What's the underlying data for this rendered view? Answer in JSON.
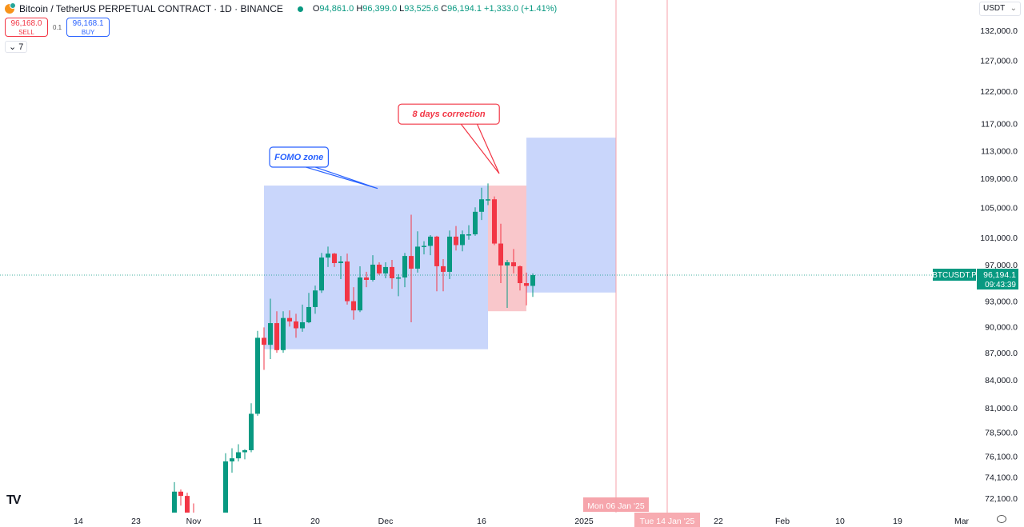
{
  "header": {
    "symbol": "Bitcoin / TetherUS PERPETUAL CONTRACT · 1D · BINANCE",
    "open_label": "O",
    "open": "94,861.0",
    "high_label": "H",
    "high": "96,399.0",
    "low_label": "L",
    "low": "93,525.6",
    "close_label": "C",
    "close": "96,194.1",
    "change": "+1,333.0 (+1.41%)"
  },
  "trade": {
    "sell_price": "96,168.0",
    "sell_label": "SELL",
    "spread": "0.1",
    "buy_price": "96,168.1",
    "buy_label": "BUY"
  },
  "indicators_toggle": "7",
  "currency": "USDT",
  "current": {
    "ticker": "BTCUSDT.P",
    "price": "96,194.1",
    "countdown": "09:43:39"
  },
  "colors": {
    "up": "#089981",
    "down": "#f23645",
    "zone_blue": "#c6d4fb",
    "zone_pink": "#f9c4c8",
    "callout_blue": "#2962ff",
    "callout_red": "#f23645"
  },
  "chart_data": {
    "type": "candlestick",
    "y_scale": "log",
    "ylim": [
      71000,
      136000
    ],
    "y_ticks": [
      132000,
      127000,
      122000,
      117000,
      113000,
      109000,
      105000,
      101000,
      97000,
      93000,
      90000,
      87000,
      84000,
      81000,
      78500,
      76100,
      74100,
      72100
    ],
    "y_tick_labels": [
      "132,000.0",
      "127,000.0",
      "122,000.0",
      "117,000.0",
      "113,000.0",
      "109,000.0",
      "105,000.0",
      "101,000.0",
      "97,000.0",
      "93,000.0",
      "90,000.0",
      "87,000.0",
      "84,000.0",
      "81,000.0",
      "78,500.0",
      "76,100.0",
      "74,100.0",
      "72,100.0"
    ],
    "x_ticks": [
      {
        "date": "2024-10-14",
        "label": "14"
      },
      {
        "date": "2024-10-23",
        "label": "23"
      },
      {
        "date": "2024-11-01",
        "label": "Nov"
      },
      {
        "date": "2024-11-11",
        "label": "11"
      },
      {
        "date": "2024-11-20",
        "label": "20"
      },
      {
        "date": "2024-12-01",
        "label": "Dec"
      },
      {
        "date": "2024-12-16",
        "label": "16"
      },
      {
        "date": "2025-01-01",
        "label": "2025"
      },
      {
        "date": "2025-01-22",
        "label": "22"
      },
      {
        "date": "2025-02-01",
        "label": "Feb"
      },
      {
        "date": "2025-02-10",
        "label": "10"
      },
      {
        "date": "2025-02-19",
        "label": "19"
      },
      {
        "date": "2025-03-01",
        "label": "Mar"
      }
    ],
    "candles": [
      [
        "2024-10-29",
        69900,
        73600,
        69700,
        72700
      ],
      [
        "2024-10-30",
        72700,
        72900,
        71400,
        72300
      ],
      [
        "2024-10-31",
        72300,
        72600,
        69700,
        70200
      ],
      [
        "2024-11-01",
        70200,
        71600,
        68800,
        69500
      ],
      [
        "2024-11-02",
        69500,
        69900,
        68800,
        69300
      ],
      [
        "2024-11-03",
        69300,
        69400,
        67400,
        68700
      ],
      [
        "2024-11-04",
        68700,
        68900,
        66800,
        67800
      ],
      [
        "2024-11-05",
        67800,
        70500,
        67500,
        69300
      ],
      [
        "2024-11-06",
        69300,
        76400,
        69000,
        75600
      ],
      [
        "2024-11-07",
        75600,
        76900,
        74500,
        75900
      ],
      [
        "2024-11-08",
        75900,
        77300,
        75600,
        76500
      ],
      [
        "2024-11-09",
        76500,
        76800,
        75800,
        76700
      ],
      [
        "2024-11-10",
        76700,
        81500,
        76500,
        80400
      ],
      [
        "2024-11-11",
        80400,
        89500,
        80200,
        88700
      ],
      [
        "2024-11-12",
        88700,
        89900,
        85100,
        87900
      ],
      [
        "2024-11-13",
        87900,
        93300,
        86300,
        90400
      ],
      [
        "2024-11-14",
        90400,
        91800,
        87000,
        87300
      ],
      [
        "2024-11-15",
        87300,
        91800,
        87000,
        91000
      ],
      [
        "2024-11-16",
        91000,
        91900,
        90000,
        90600
      ],
      [
        "2024-11-17",
        90600,
        91500,
        88700,
        89800
      ],
      [
        "2024-11-18",
        89800,
        92600,
        89400,
        90500
      ],
      [
        "2024-11-19",
        90500,
        94000,
        90400,
        92300
      ],
      [
        "2024-11-20",
        92300,
        94900,
        91500,
        94300
      ],
      [
        "2024-11-21",
        94300,
        99000,
        94000,
        98400
      ],
      [
        "2024-11-22",
        98400,
        99800,
        97200,
        98900
      ],
      [
        "2024-11-23",
        98900,
        99000,
        97200,
        97700
      ],
      [
        "2024-11-24",
        97700,
        98600,
        95700,
        97900
      ],
      [
        "2024-11-25",
        97900,
        98900,
        92600,
        93000
      ],
      [
        "2024-11-26",
        93000,
        94700,
        90800,
        91900
      ],
      [
        "2024-11-27",
        91900,
        97300,
        91700,
        95900
      ],
      [
        "2024-11-28",
        95900,
        96600,
        94700,
        95600
      ],
      [
        "2024-11-29",
        95600,
        98700,
        95400,
        97500
      ],
      [
        "2024-11-30",
        97500,
        97800,
        96200,
        96400
      ],
      [
        "2024-12-01",
        96400,
        97800,
        95800,
        97200
      ],
      [
        "2024-12-02",
        97200,
        98100,
        94500,
        95800
      ],
      [
        "2024-12-03",
        95800,
        96300,
        93600,
        95900
      ],
      [
        "2024-12-04",
        95900,
        99000,
        94700,
        98600
      ],
      [
        "2024-12-05",
        98600,
        104000,
        90500,
        97000
      ],
      [
        "2024-12-06",
        97000,
        101800,
        96500,
        99800
      ],
      [
        "2024-12-07",
        99800,
        100500,
        98800,
        99900
      ],
      [
        "2024-12-08",
        99900,
        101300,
        98700,
        101100
      ],
      [
        "2024-12-09",
        101100,
        101200,
        94200,
        97300
      ],
      [
        "2024-12-10",
        97300,
        98200,
        94200,
        96600
      ],
      [
        "2024-12-11",
        96600,
        101900,
        95700,
        101100
      ],
      [
        "2024-12-12",
        101100,
        102500,
        99300,
        100000
      ],
      [
        "2024-12-13",
        100000,
        101900,
        99200,
        101400
      ],
      [
        "2024-12-14",
        101400,
        102600,
        100700,
        101400
      ],
      [
        "2024-12-15",
        101400,
        105000,
        101200,
        104400
      ],
      [
        "2024-12-16",
        104400,
        107700,
        103300,
        106100
      ],
      [
        "2024-12-17",
        106100,
        108300,
        105300,
        106100
      ],
      [
        "2024-12-18",
        106100,
        106500,
        100000,
        100200
      ],
      [
        "2024-12-19",
        100200,
        102800,
        95200,
        97400
      ],
      [
        "2024-12-20",
        97400,
        98100,
        92200,
        97800
      ],
      [
        "2024-12-21",
        97800,
        99500,
        96400,
        97300
      ],
      [
        "2024-12-22",
        97300,
        97400,
        94300,
        95200
      ],
      [
        "2024-12-23",
        95200,
        96500,
        92500,
        94861
      ],
      [
        "2024-12-24",
        94861,
        96399,
        93525.6,
        96194.1
      ]
    ],
    "rectangles": [
      {
        "name": "fomo-zone",
        "from": "2024-11-12",
        "to": "2024-12-17",
        "top": 108000,
        "bottom": 87400,
        "color": "#c6d4fb"
      },
      {
        "name": "correction-zone",
        "from": "2024-12-17",
        "to": "2024-12-23",
        "top": 108000,
        "bottom": 91800,
        "color": "#f9c4c8"
      },
      {
        "name": "projection-zone",
        "from": "2024-12-23",
        "to": "2025-01-06",
        "top": 114900,
        "bottom": 94050,
        "color": "#c6d4fb"
      }
    ],
    "callouts": [
      {
        "text": "FOMO zone",
        "color": "#2962ff",
        "anchor_date": "2024-12-00",
        "anchor_price": 107600,
        "box_date": "2024-11-13",
        "box_price": 113500
      },
      {
        "text": "8 days correction",
        "color": "#f23645",
        "anchor_date": "2024-12-19",
        "anchor_price": 109700,
        "box_date": "2024-12-02",
        "box_price": 120000
      }
    ],
    "vertical_lines": [
      {
        "date": "2025-01-06",
        "label": "Mon 06 Jan '25"
      },
      {
        "date": "2025-01-14",
        "label": "Tue 14 Jan '25"
      }
    ],
    "last_price": 96194.1
  }
}
